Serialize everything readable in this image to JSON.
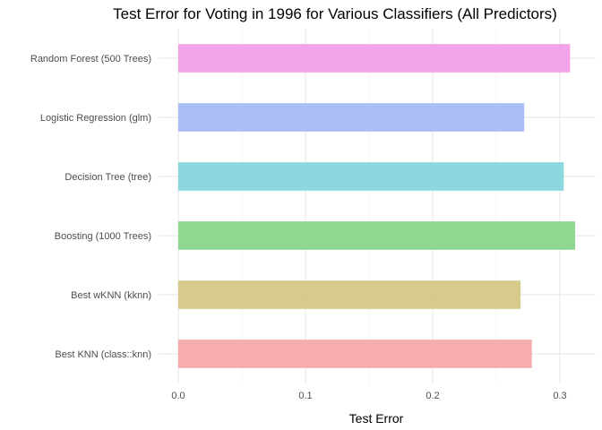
{
  "chart_data": {
    "type": "bar",
    "orientation": "horizontal",
    "title": "Test Error for Voting in 1996 for Various Classifiers (All Predictors)",
    "xlabel": "Test Error",
    "ylabel": "",
    "xlim": [
      0,
      0.31
    ],
    "xticks": [
      "0.0",
      "0.1",
      "0.2",
      "0.3"
    ],
    "grid": true,
    "legend": "none",
    "categories": [
      "Random Forest (500 Trees)",
      "Logistic Regression (glm)",
      "Decision Tree (tree)",
      "Boosting (1000 Trees)",
      "Best wKNN (kknn)",
      "Best KNN (class::knn)"
    ],
    "values": [
      0.308,
      0.272,
      0.303,
      0.312,
      0.269,
      0.278
    ],
    "colors": [
      "#f29ee6",
      "#a6bcf7",
      "#87d6dc",
      "#8ad68c",
      "#d4c884",
      "#f6a9a8"
    ]
  }
}
